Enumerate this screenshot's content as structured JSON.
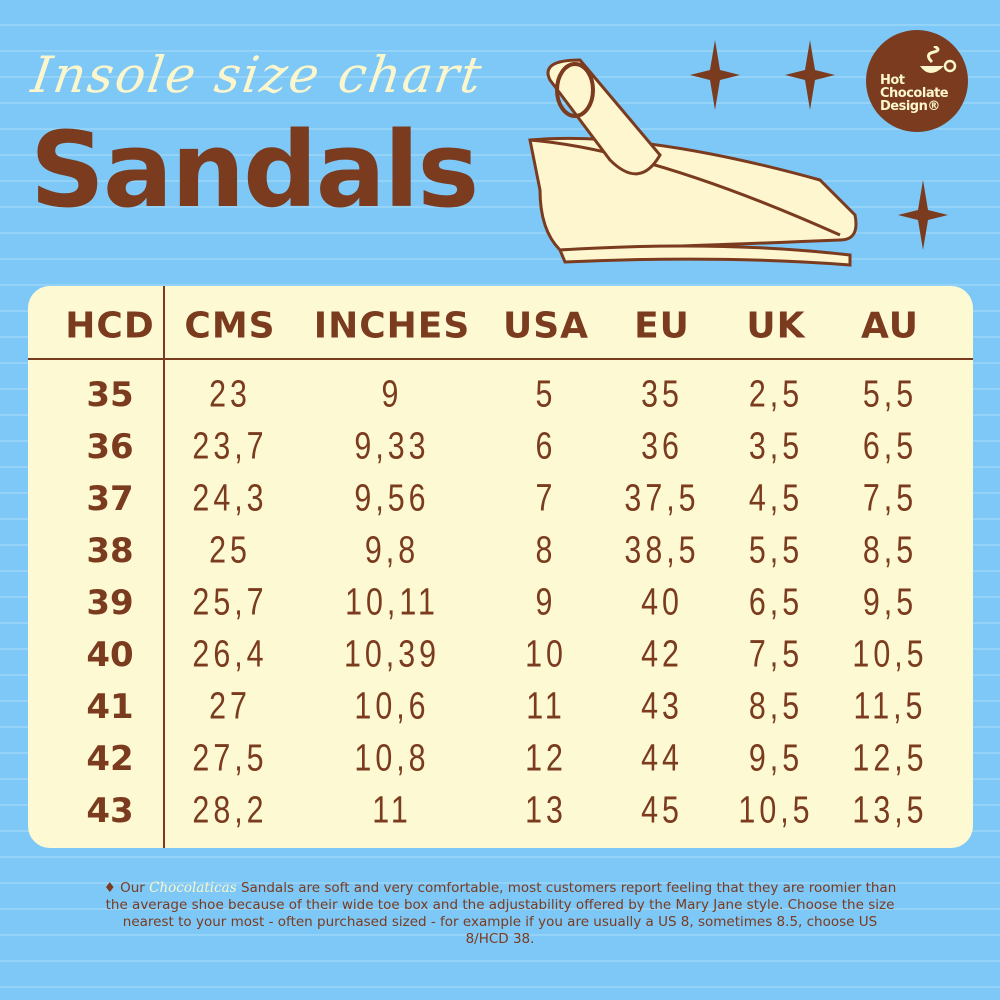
{
  "header": {
    "subtitle": "Insole size chart",
    "title": "Sandals"
  },
  "logo": {
    "line1": "Hot",
    "line2": "Chocolate",
    "line3": "Design®"
  },
  "colors": {
    "background": "#7ec8f7",
    "brown": "#7a3b1f",
    "cream": "#fdf9d3"
  },
  "table": {
    "columns": [
      "HCD",
      "CMS",
      "INCHES",
      "USA",
      "EU",
      "UK",
      "AU"
    ],
    "rows": [
      [
        "35",
        "23",
        "9",
        "5",
        "35",
        "2,5",
        "5,5"
      ],
      [
        "36",
        "23,7",
        "9,33",
        "6",
        "36",
        "3,5",
        "6,5"
      ],
      [
        "37",
        "24,3",
        "9,56",
        "7",
        "37,5",
        "4,5",
        "7,5"
      ],
      [
        "38",
        "25",
        "9,8",
        "8",
        "38,5",
        "5,5",
        "8,5"
      ],
      [
        "39",
        "25,7",
        "10,11",
        "9",
        "40",
        "6,5",
        "9,5"
      ],
      [
        "40",
        "26,4",
        "10,39",
        "10",
        "42",
        "7,5",
        "10,5"
      ],
      [
        "41",
        "27",
        "10,6",
        "11",
        "43",
        "8,5",
        "11,5"
      ],
      [
        "42",
        "27,5",
        "10,8",
        "12",
        "44",
        "9,5",
        "12,5"
      ],
      [
        "43",
        "28,2",
        "11",
        "13",
        "45",
        "10,5",
        "13,5"
      ]
    ]
  },
  "note": {
    "bullet": "♦",
    "prefix": "Our",
    "brand": "Chocolaticas",
    "text": "Sandals are soft and very comfortable, most customers report feeling that they are roomier than the average shoe because of their wide toe box and the adjustability offered by the Mary Jane style. Choose the size nearest to your most - often  purchased sized - for example if you are usually a US 8, sometimes 8.5, choose US 8/HCD 38."
  }
}
